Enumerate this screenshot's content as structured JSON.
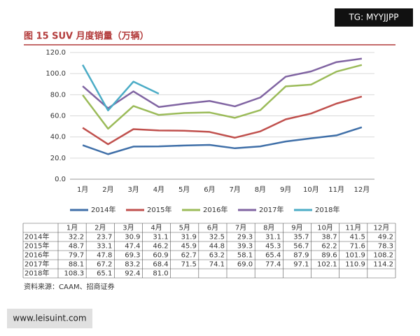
{
  "chart_data": {
    "type": "line",
    "title": "图 15 SUV 月度销量（万辆）",
    "categories": [
      "1月",
      "2月",
      "3月",
      "4月",
      "5月",
      "6月",
      "7月",
      "8月",
      "9月",
      "10月",
      "11月",
      "12月"
    ],
    "series": [
      {
        "name": "2014年",
        "color": "#3f6fa8",
        "values": [
          32.2,
          23.7,
          30.9,
          31.1,
          31.9,
          32.5,
          29.3,
          31.1,
          35.7,
          38.7,
          41.5,
          49.2
        ]
      },
      {
        "name": "2015年",
        "color": "#c0504d",
        "values": [
          48.7,
          33.1,
          47.4,
          46.2,
          45.9,
          44.8,
          39.3,
          45.3,
          56.7,
          62.2,
          71.6,
          78.3
        ]
      },
      {
        "name": "2016年",
        "color": "#9bbb59",
        "values": [
          79.7,
          47.8,
          69.3,
          60.9,
          62.7,
          63.2,
          58.1,
          65.4,
          87.9,
          89.6,
          101.9,
          108.2
        ]
      },
      {
        "name": "2017年",
        "color": "#8064a2",
        "values": [
          88.1,
          67.2,
          83.2,
          68.4,
          71.5,
          74.1,
          69.0,
          77.4,
          97.1,
          102.1,
          110.9,
          114.2
        ],
        "value_labels": [
          "88.1",
          "67.2",
          "83.2",
          "68.4",
          "71.5",
          "74.1",
          "69.0",
          "77.4",
          "97.1",
          "102.1",
          "110.9",
          "114.2"
        ]
      },
      {
        "name": "2018年",
        "color": "#4bacc6",
        "values": [
          108.3,
          65.1,
          92.4,
          81.0,
          null,
          null,
          null,
          null,
          null,
          null,
          null,
          null
        ],
        "value_labels": [
          "108.3",
          "65.1",
          "92.4",
          "81.0",
          null,
          null,
          null,
          null,
          null,
          null,
          null,
          null
        ]
      }
    ],
    "ylim": [
      0,
      120
    ],
    "yticks": [
      {
        "value": 0,
        "label": "0.0"
      },
      {
        "value": 20,
        "label": "20.0"
      },
      {
        "value": 40,
        "label": "40.0"
      },
      {
        "value": 60,
        "label": "60.0"
      },
      {
        "value": 80,
        "label": "80.0"
      },
      {
        "value": 100,
        "label": "100.0"
      },
      {
        "value": 120,
        "label": "120.0"
      }
    ],
    "grid": true,
    "legend": "bottom",
    "source": "资料来源：CAAM、招商证券"
  },
  "watermarks": [
    "TG: MYYJJPP",
    "www.leisuint.com"
  ]
}
